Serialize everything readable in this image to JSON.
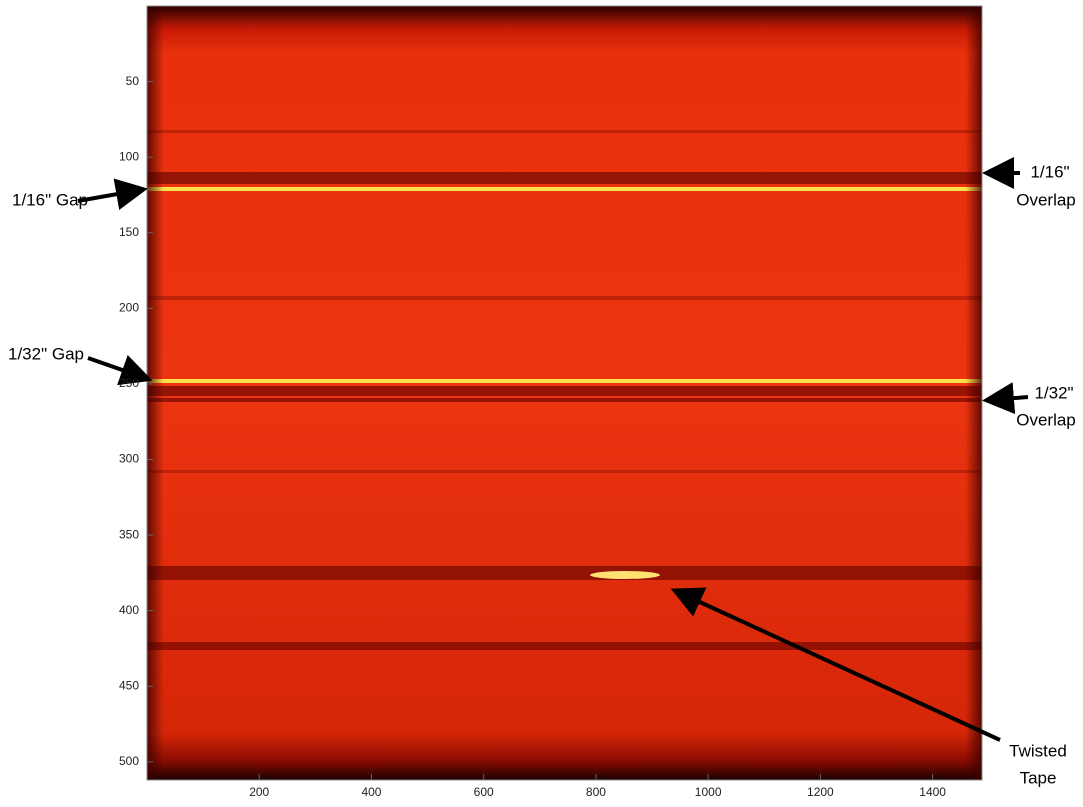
{
  "chart_data": {
    "type": "heatmap",
    "xlim": [
      0,
      1488
    ],
    "ylim": [
      512,
      0
    ],
    "xticks": [
      200,
      400,
      600,
      800,
      1000,
      1200,
      1400
    ],
    "yticks": [
      50,
      100,
      150,
      200,
      250,
      300,
      350,
      400,
      450,
      500
    ],
    "colormap": "hot",
    "annotations": [
      {
        "lines": [
          "1/16\" Gap"
        ]
      },
      {
        "lines": [
          "1/32\" Gap"
        ]
      },
      {
        "lines": [
          "1/16\"",
          "Overlap"
        ]
      },
      {
        "lines": [
          "1/32\"",
          "Overlap"
        ]
      },
      {
        "lines": [
          "Twisted",
          "Tape"
        ]
      }
    ]
  }
}
